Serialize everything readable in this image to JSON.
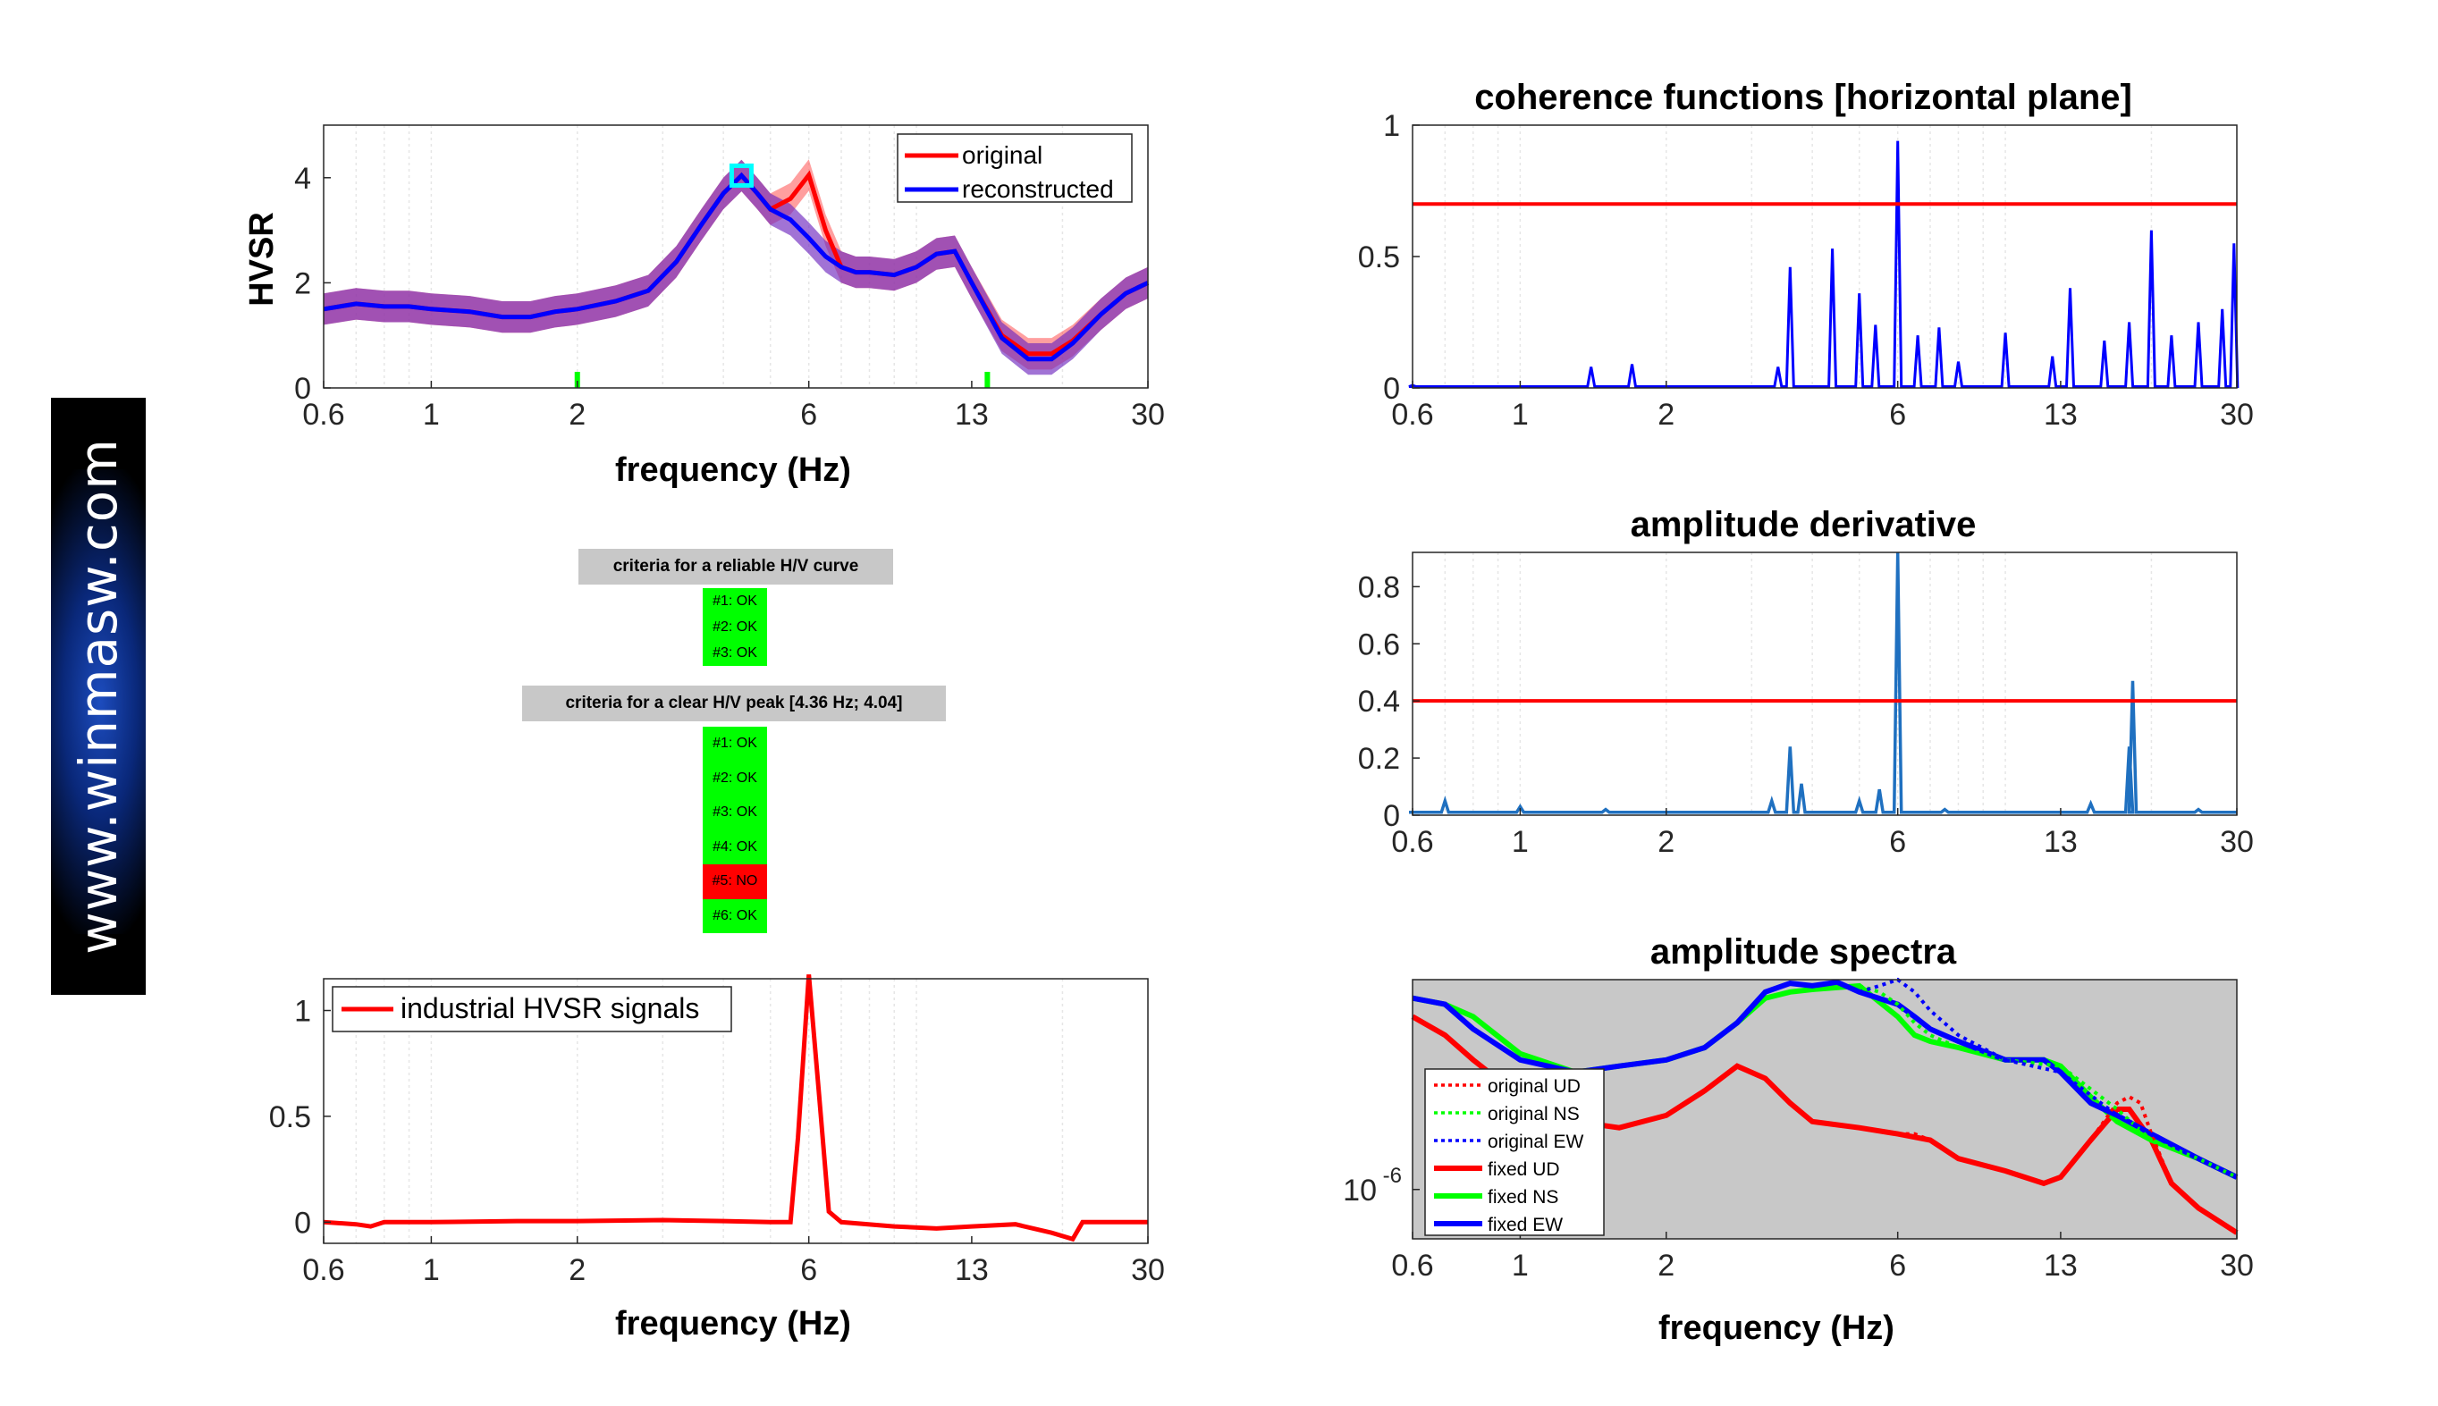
{
  "brand": {
    "text": "www.winmasw.com"
  },
  "xticks": [
    "0.6",
    "1",
    "2",
    "6",
    "13",
    "30"
  ],
  "xtick_values": [
    0.6,
    1,
    2,
    6,
    13,
    30
  ],
  "hvsr_panel": {
    "ylabel": "HVSR",
    "xlabel": "frequency (Hz)",
    "yticks": [
      "0",
      "2",
      "4"
    ],
    "legend": [
      "original",
      "reconstructed"
    ]
  },
  "criteria": {
    "reliable_title": "criteria for a reliable H/V curve",
    "reliable": [
      {
        "label": "#1: OK",
        "status": "ok"
      },
      {
        "label": "#2: OK",
        "status": "ok"
      },
      {
        "label": "#3: OK",
        "status": "ok"
      }
    ],
    "peak_title": "criteria for a clear H/V peak [4.36 Hz; 4.04]",
    "peak": [
      {
        "label": "#1: OK",
        "status": "ok"
      },
      {
        "label": "#2: OK",
        "status": "ok"
      },
      {
        "label": "#3: OK",
        "status": "ok"
      },
      {
        "label": "#4: OK",
        "status": "ok"
      },
      {
        "label": "#5: NO",
        "status": "no"
      },
      {
        "label": "#6: OK",
        "status": "ok"
      }
    ]
  },
  "industrial_panel": {
    "xlabel": "frequency (Hz)",
    "yticks": [
      "0",
      "0.5",
      "1"
    ],
    "legend": [
      "industrial HVSR signals"
    ]
  },
  "coherence_panel": {
    "title": "coherence functions [horizontal plane]",
    "yticks": [
      "0",
      "0.5",
      "1"
    ]
  },
  "derivative_panel": {
    "title": "amplitude derivative",
    "yticks": [
      "0",
      "0.2",
      "0.4",
      "0.6",
      "0.8"
    ]
  },
  "spectra_panel": {
    "title": "amplitude spectra",
    "xlabel": "frequency (Hz)",
    "ytick": "10",
    "ytick_exp": "-6",
    "legend": [
      "original UD",
      "original NS",
      "original EW",
      "fixed UD",
      "fixed NS",
      "fixed EW"
    ]
  },
  "colors": {
    "red": "#ff0000",
    "blue": "#0000ff",
    "green": "#00ff00",
    "derivative": "#1f70c0",
    "spectra_bg": "#c8c8c8"
  },
  "chart_data": [
    {
      "type": "line",
      "xscale": "log",
      "xlim": [
        0.6,
        30
      ],
      "ylim": [
        0,
        5
      ],
      "ylabel": "HVSR",
      "xlabel": "frequency (Hz)",
      "peak_marker": [
        4.36,
        4.04
      ],
      "green_markers": [
        2.0,
        14.0
      ],
      "series": [
        {
          "name": "original",
          "color": "#ff0000",
          "x": [
            0.6,
            0.7,
            0.8,
            0.9,
            1.0,
            1.2,
            1.4,
            1.6,
            1.8,
            2.0,
            2.4,
            2.8,
            3.2,
            3.6,
            4.0,
            4.36,
            4.7,
            5.0,
            5.5,
            6.0,
            6.5,
            7.0,
            7.5,
            8.0,
            9.0,
            10,
            11,
            12,
            13,
            15,
            17,
            19,
            21,
            24,
            27,
            30
          ],
          "y": [
            1.5,
            1.6,
            1.55,
            1.55,
            1.5,
            1.45,
            1.35,
            1.35,
            1.45,
            1.5,
            1.65,
            1.85,
            2.4,
            3.1,
            3.7,
            4.04,
            3.7,
            3.4,
            3.6,
            4.05,
            3.0,
            2.3,
            2.2,
            2.2,
            2.15,
            2.3,
            2.55,
            2.6,
            2.0,
            1.0,
            0.65,
            0.65,
            0.9,
            1.4,
            1.8,
            2.0
          ]
        },
        {
          "name": "reconstructed",
          "color": "#0000ff",
          "x": [
            0.6,
            0.7,
            0.8,
            0.9,
            1.0,
            1.2,
            1.4,
            1.6,
            1.8,
            2.0,
            2.4,
            2.8,
            3.2,
            3.6,
            4.0,
            4.36,
            4.7,
            5.0,
            5.5,
            6.0,
            6.5,
            7.0,
            7.5,
            8.0,
            9.0,
            10,
            11,
            12,
            13,
            15,
            17,
            19,
            21,
            24,
            27,
            30
          ],
          "y": [
            1.5,
            1.6,
            1.55,
            1.55,
            1.5,
            1.45,
            1.35,
            1.35,
            1.45,
            1.5,
            1.65,
            1.85,
            2.4,
            3.1,
            3.7,
            4.04,
            3.7,
            3.4,
            3.2,
            2.85,
            2.5,
            2.3,
            2.2,
            2.2,
            2.15,
            2.3,
            2.55,
            2.6,
            2.0,
            0.95,
            0.55,
            0.55,
            0.85,
            1.4,
            1.8,
            2.0
          ]
        }
      ]
    },
    {
      "type": "line",
      "xscale": "log",
      "xlim": [
        0.6,
        30
      ],
      "ylim": [
        -0.1,
        1.15
      ],
      "series": [
        {
          "name": "industrial HVSR signals",
          "color": "#ff0000",
          "x": [
            0.6,
            0.7,
            0.75,
            0.8,
            1.0,
            1.5,
            2.0,
            3.0,
            4.0,
            5.0,
            5.5,
            5.7,
            6.0,
            6.3,
            6.6,
            7.0,
            9.0,
            11,
            13,
            16,
            19,
            21,
            22,
            24,
            30
          ],
          "y": [
            0.0,
            -0.01,
            -0.02,
            0.0,
            0.0,
            0.005,
            0.005,
            0.01,
            0.005,
            0.0,
            0.0,
            0.4,
            1.17,
            0.6,
            0.05,
            0.0,
            -0.02,
            -0.03,
            -0.02,
            -0.01,
            -0.05,
            -0.08,
            0.0,
            0.0,
            0.0
          ]
        }
      ]
    },
    {
      "type": "line",
      "xscale": "log",
      "title": "coherence functions [horizontal plane]",
      "xlim": [
        0.6,
        30
      ],
      "ylim": [
        0,
        1
      ],
      "threshold": 0.7,
      "peaks": [
        [
          0.6,
          0.01
        ],
        [
          1.4,
          0.08
        ],
        [
          1.7,
          0.09
        ],
        [
          3.4,
          0.08
        ],
        [
          3.6,
          0.46
        ],
        [
          4.4,
          0.53
        ],
        [
          5.0,
          0.36
        ],
        [
          5.4,
          0.24
        ],
        [
          6.0,
          0.94
        ],
        [
          6.6,
          0.2
        ],
        [
          7.3,
          0.23
        ],
        [
          8.0,
          0.1
        ],
        [
          10.0,
          0.21
        ],
        [
          12.5,
          0.12
        ],
        [
          13.6,
          0.38
        ],
        [
          16.0,
          0.18
        ],
        [
          18.0,
          0.25
        ],
        [
          20.0,
          0.6
        ],
        [
          22.0,
          0.2
        ],
        [
          25.0,
          0.25
        ],
        [
          28.0,
          0.3
        ],
        [
          29.6,
          0.55
        ]
      ]
    },
    {
      "type": "line",
      "xscale": "log",
      "title": "amplitude derivative",
      "xlim": [
        0.6,
        30
      ],
      "ylim": [
        0,
        0.92
      ],
      "threshold": 0.4,
      "peaks": [
        [
          0.6,
          0.01
        ],
        [
          0.7,
          0.05
        ],
        [
          1.0,
          0.03
        ],
        [
          1.5,
          0.02
        ],
        [
          3.3,
          0.05
        ],
        [
          3.6,
          0.24
        ],
        [
          3.8,
          0.11
        ],
        [
          5.0,
          0.05
        ],
        [
          5.5,
          0.09
        ],
        [
          6.0,
          0.92
        ],
        [
          7.5,
          0.02
        ],
        [
          15.0,
          0.04
        ],
        [
          18.0,
          0.24
        ],
        [
          18.3,
          0.47
        ],
        [
          25.0,
          0.02
        ]
      ]
    },
    {
      "type": "line",
      "xscale": "log",
      "yscale": "log",
      "title": "amplitude spectra",
      "xlabel": "frequency (Hz)",
      "xlim": [
        0.6,
        30
      ],
      "ylim_log10": [
        -6.4,
        -4.3
      ],
      "series": [
        {
          "name": "fixed UD",
          "color": "#ff0000",
          "style": "solid",
          "x": [
            0.6,
            0.7,
            0.8,
            1.0,
            1.3,
            1.6,
            2.0,
            2.4,
            2.8,
            3.2,
            3.6,
            4.0,
            5.0,
            6.0,
            7.0,
            8.0,
            10,
            12,
            13,
            15,
            17,
            18,
            20,
            22,
            25,
            30
          ],
          "y": [
            -4.6,
            -4.75,
            -4.95,
            -5.25,
            -5.45,
            -5.5,
            -5.4,
            -5.2,
            -5.0,
            -5.1,
            -5.3,
            -5.45,
            -5.5,
            -5.55,
            -5.6,
            -5.75,
            -5.85,
            -5.95,
            -5.9,
            -5.6,
            -5.35,
            -5.35,
            -5.6,
            -5.95,
            -6.15,
            -6.35
          ]
        },
        {
          "name": "fixed NS",
          "color": "#00ff00",
          "style": "solid",
          "x": [
            0.6,
            0.7,
            0.8,
            1.0,
            1.3,
            1.6,
            2.0,
            2.4,
            2.8,
            3.2,
            3.6,
            4.0,
            5.0,
            6.0,
            6.5,
            7.0,
            8.0,
            10,
            12,
            13,
            15,
            17,
            20,
            25,
            30
          ],
          "y": [
            -4.45,
            -4.5,
            -4.6,
            -4.9,
            -5.05,
            -5.0,
            -4.95,
            -4.85,
            -4.65,
            -4.45,
            -4.4,
            -4.38,
            -4.35,
            -4.6,
            -4.75,
            -4.8,
            -4.85,
            -4.95,
            -4.95,
            -5.0,
            -5.25,
            -5.45,
            -5.6,
            -5.75,
            -5.9
          ]
        },
        {
          "name": "fixed EW",
          "color": "#0000ff",
          "style": "solid",
          "x": [
            0.6,
            0.7,
            0.8,
            1.0,
            1.3,
            1.6,
            2.0,
            2.4,
            2.8,
            3.2,
            3.6,
            4.0,
            4.5,
            5.0,
            6.0,
            6.5,
            7.0,
            8.0,
            10,
            12,
            13,
            15,
            17,
            20,
            25,
            30
          ],
          "y": [
            -4.45,
            -4.5,
            -4.7,
            -4.95,
            -5.05,
            -5.0,
            -4.95,
            -4.85,
            -4.65,
            -4.4,
            -4.33,
            -4.35,
            -4.32,
            -4.4,
            -4.5,
            -4.6,
            -4.7,
            -4.8,
            -4.95,
            -4.95,
            -5.05,
            -5.3,
            -5.4,
            -5.55,
            -5.75,
            -5.9
          ]
        },
        {
          "name": "original UD",
          "color": "#ff0000",
          "style": "dotted",
          "x": [
            6.0,
            6.5,
            7.0,
            8.0,
            10,
            12,
            13,
            15,
            17,
            18,
            19,
            20,
            22,
            25,
            30
          ],
          "y": [
            -5.55,
            -5.55,
            -5.6,
            -5.75,
            -5.85,
            -5.95,
            -5.9,
            -5.6,
            -5.3,
            -5.25,
            -5.3,
            -5.55,
            -5.95,
            -6.15,
            -6.35
          ]
        },
        {
          "name": "original NS",
          "color": "#00ff00",
          "style": "dotted",
          "x": [
            5.0,
            5.5,
            6.0,
            6.5,
            7.0,
            8.0,
            10,
            13,
            17,
            20,
            25,
            30
          ],
          "y": [
            -4.35,
            -4.4,
            -4.5,
            -4.65,
            -4.75,
            -4.85,
            -4.95,
            -5.0,
            -5.35,
            -5.6,
            -5.75,
            -5.9
          ]
        },
        {
          "name": "original EW",
          "color": "#0000ff",
          "style": "dotted",
          "x": [
            5.0,
            5.5,
            6.0,
            6.5,
            7.0,
            8.0,
            10,
            13,
            17,
            20,
            25,
            30
          ],
          "y": [
            -4.4,
            -4.35,
            -4.3,
            -4.4,
            -4.55,
            -4.75,
            -4.95,
            -5.05,
            -5.4,
            -5.55,
            -5.75,
            -5.9
          ]
        }
      ]
    }
  ]
}
